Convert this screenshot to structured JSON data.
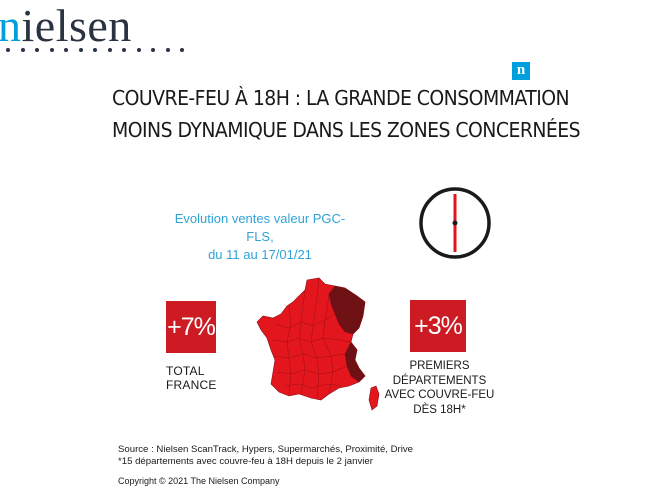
{
  "brand": {
    "logo_n": "n",
    "logo_rest": "ielsen",
    "badge": "n"
  },
  "headline": {
    "line1": "COUVRE-FEU À 18H : LA GRANDE CONSOMMATION",
    "line2": "MOINS DYNAMIQUE DANS LES ZONES CONCERNÉES"
  },
  "subtitle": {
    "line1": "Evolution ventes valeur PGC-FLS,",
    "line2": "du 11 au 17/01/21"
  },
  "stats": {
    "total": {
      "value": "+7%",
      "label_line1": "TOTAL",
      "label_line2": "FRANCE"
    },
    "curfew": {
      "value": "+3%",
      "label_line1": "PREMIERS DÉPARTEMENTS",
      "label_line2": "AVEC COUVRE-FEU",
      "label_line3": "DÈS 18H*"
    }
  },
  "footer": {
    "source": "Source : Nielsen ScanTrack, Hypers, Supermarchés, Proximité, Drive",
    "note": "*15 départements avec couvre-feu à 18H depuis le 2 janvier",
    "copyright": "Copyright © 2021 The Nielsen Company"
  },
  "colors": {
    "brand_blue": "#00a0dc",
    "highlight_red": "#cc1b23",
    "curfew_dark_red": "#6e1114",
    "map_red": "#e3161d"
  },
  "icons": [
    "clock-icon",
    "france-map"
  ]
}
